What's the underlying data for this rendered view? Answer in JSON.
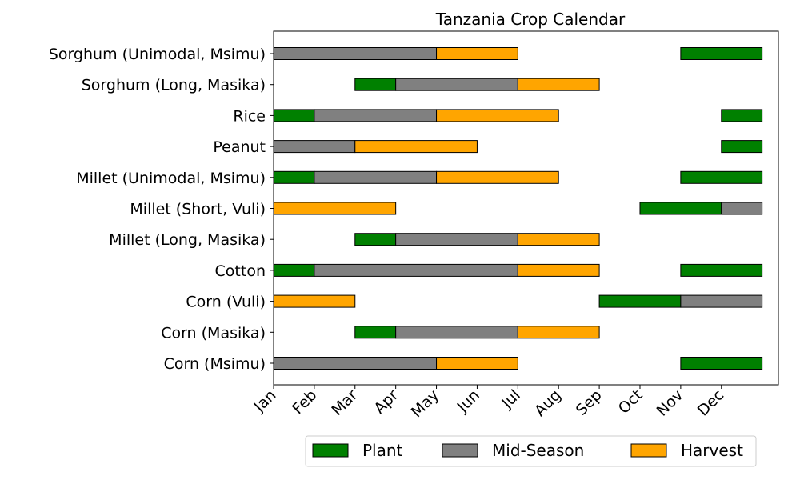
{
  "chart_data": {
    "type": "bar",
    "title": "Tanzania Crop Calendar",
    "xlabel": "",
    "ylabel": "",
    "x_ticks": [
      "Jan",
      "Feb",
      "Mar",
      "Apr",
      "May",
      "Jun",
      "Jul",
      "Aug",
      "Sep",
      "Oct",
      "Nov",
      "Dec"
    ],
    "x_range_months": [
      0,
      12.4
    ],
    "grid": false,
    "legend_placement": "bottom-center",
    "stages": [
      {
        "name": "Plant",
        "color": "#008000"
      },
      {
        "name": "Mid-Season",
        "color": "#808080"
      },
      {
        "name": "Harvest",
        "color": "#ffa500"
      }
    ],
    "categories": [
      "Sorghum (Unimodal, Msimu)",
      "Sorghum (Long, Masika)",
      "Rice",
      "Peanut",
      "Millet (Unimodal, Msimu)",
      "Millet (Short, Vuli)",
      "Millet (Long, Masika)",
      "Cotton",
      "Corn (Vuli)",
      "Corn (Masika)",
      "Corn (Msimu)"
    ],
    "segments": [
      {
        "crop": "Sorghum (Unimodal, Msimu)",
        "stage": "Mid-Season",
        "start": 0,
        "end": 4
      },
      {
        "crop": "Sorghum (Unimodal, Msimu)",
        "stage": "Harvest",
        "start": 4,
        "end": 6
      },
      {
        "crop": "Sorghum (Unimodal, Msimu)",
        "stage": "Plant",
        "start": 10,
        "end": 12
      },
      {
        "crop": "Sorghum (Long, Masika)",
        "stage": "Plant",
        "start": 2,
        "end": 3
      },
      {
        "crop": "Sorghum (Long, Masika)",
        "stage": "Mid-Season",
        "start": 3,
        "end": 6
      },
      {
        "crop": "Sorghum (Long, Masika)",
        "stage": "Harvest",
        "start": 6,
        "end": 8
      },
      {
        "crop": "Rice",
        "stage": "Plant",
        "start": 0,
        "end": 1
      },
      {
        "crop": "Rice",
        "stage": "Mid-Season",
        "start": 1,
        "end": 4
      },
      {
        "crop": "Rice",
        "stage": "Harvest",
        "start": 4,
        "end": 7
      },
      {
        "crop": "Rice",
        "stage": "Plant",
        "start": 11,
        "end": 12
      },
      {
        "crop": "Peanut",
        "stage": "Mid-Season",
        "start": 0,
        "end": 2
      },
      {
        "crop": "Peanut",
        "stage": "Harvest",
        "start": 2,
        "end": 5
      },
      {
        "crop": "Peanut",
        "stage": "Plant",
        "start": 11,
        "end": 12
      },
      {
        "crop": "Millet (Unimodal, Msimu)",
        "stage": "Plant",
        "start": 0,
        "end": 1
      },
      {
        "crop": "Millet (Unimodal, Msimu)",
        "stage": "Mid-Season",
        "start": 1,
        "end": 4
      },
      {
        "crop": "Millet (Unimodal, Msimu)",
        "stage": "Harvest",
        "start": 4,
        "end": 7
      },
      {
        "crop": "Millet (Unimodal, Msimu)",
        "stage": "Plant",
        "start": 10,
        "end": 12
      },
      {
        "crop": "Millet (Short, Vuli)",
        "stage": "Harvest",
        "start": 0,
        "end": 3
      },
      {
        "crop": "Millet (Short, Vuli)",
        "stage": "Plant",
        "start": 9,
        "end": 11
      },
      {
        "crop": "Millet (Short, Vuli)",
        "stage": "Mid-Season",
        "start": 11,
        "end": 12
      },
      {
        "crop": "Millet (Long, Masika)",
        "stage": "Plant",
        "start": 2,
        "end": 3
      },
      {
        "crop": "Millet (Long, Masika)",
        "stage": "Mid-Season",
        "start": 3,
        "end": 6
      },
      {
        "crop": "Millet (Long, Masika)",
        "stage": "Harvest",
        "start": 6,
        "end": 8
      },
      {
        "crop": "Cotton",
        "stage": "Plant",
        "start": 0,
        "end": 1
      },
      {
        "crop": "Cotton",
        "stage": "Mid-Season",
        "start": 1,
        "end": 6
      },
      {
        "crop": "Cotton",
        "stage": "Harvest",
        "start": 6,
        "end": 8
      },
      {
        "crop": "Cotton",
        "stage": "Plant",
        "start": 10,
        "end": 12
      },
      {
        "crop": "Corn (Vuli)",
        "stage": "Harvest",
        "start": 0,
        "end": 2
      },
      {
        "crop": "Corn (Vuli)",
        "stage": "Plant",
        "start": 8,
        "end": 10
      },
      {
        "crop": "Corn (Vuli)",
        "stage": "Mid-Season",
        "start": 10,
        "end": 12
      },
      {
        "crop": "Corn (Masika)",
        "stage": "Plant",
        "start": 2,
        "end": 3
      },
      {
        "crop": "Corn (Masika)",
        "stage": "Mid-Season",
        "start": 3,
        "end": 6
      },
      {
        "crop": "Corn (Masika)",
        "stage": "Harvest",
        "start": 6,
        "end": 8
      },
      {
        "crop": "Corn (Msimu)",
        "stage": "Mid-Season",
        "start": 0,
        "end": 4
      },
      {
        "crop": "Corn (Msimu)",
        "stage": "Harvest",
        "start": 4,
        "end": 6
      },
      {
        "crop": "Corn (Msimu)",
        "stage": "Plant",
        "start": 10,
        "end": 12
      }
    ]
  }
}
